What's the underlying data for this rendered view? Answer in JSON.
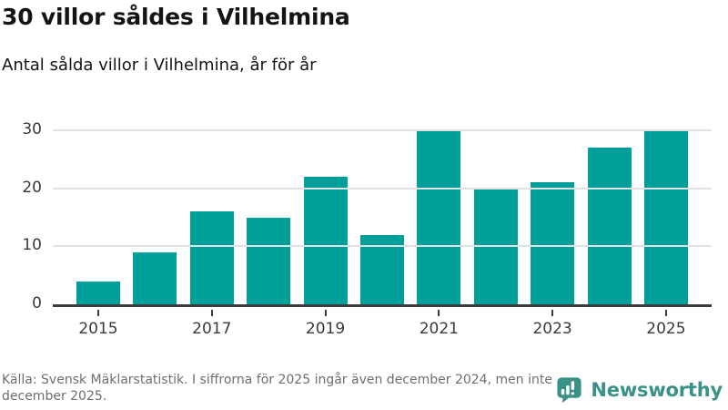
{
  "header": {
    "title": "30 villor såldes i Vilhelmina",
    "subtitle": "Antal sålda villor i Vilhelmina, år för år"
  },
  "chart_data": {
    "type": "bar",
    "categories": [
      "2015",
      "2016",
      "2017",
      "2018",
      "2019",
      "2020",
      "2021",
      "2022",
      "2023",
      "2024",
      "2025"
    ],
    "values": [
      4,
      9,
      16,
      15,
      22,
      12,
      30,
      20,
      21,
      27,
      30
    ],
    "title": "30 villor såldes i Vilhelmina",
    "subtitle": "Antal sålda villor i Vilhelmina, år för år",
    "xlabel": "",
    "ylabel": "",
    "ylim": [
      0,
      30
    ],
    "yticks": [
      0,
      10,
      20,
      30
    ],
    "xtick_labels": [
      "2015",
      "2017",
      "2019",
      "2021",
      "2023",
      "2025"
    ],
    "legend": "none",
    "grid": "horizontal",
    "bar_color": "#00A09A"
  },
  "footer": {
    "source_text": "Källa: Svensk Mäklarstatistik. I siffrorna för 2025 ingår även december 2024, men inte december 2025.",
    "brand_name": "Newsworthy"
  },
  "colors": {
    "background": "#FFFFFF",
    "bar": "#00A09A",
    "grid_line": "#E2E2E2",
    "axis_line": "#3B3B3B",
    "title_text": "#141414",
    "tick_text": "#3A3A3A",
    "source_text": "#6E6E6E",
    "brand_teal": "#3A9188"
  }
}
